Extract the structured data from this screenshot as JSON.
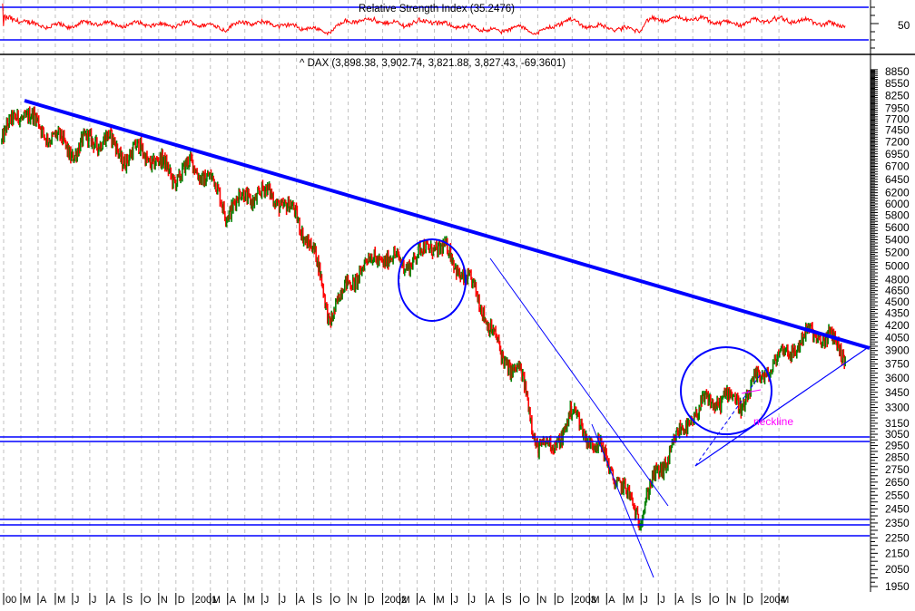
{
  "rsi_panel": {
    "title": "Relative Strength Index (35.2476)",
    "axis_label_50": "50",
    "upper_band": 70,
    "lower_band": 30
  },
  "price_panel": {
    "title": "^ DAX (3,898.38, 3,902.74, 3,821.88, 3,827.43, -69.3601)",
    "neckline_label": "neckline"
  },
  "colors": {
    "up_bar": "#008000",
    "down_bar": "#ff0000",
    "rsi_line": "#ff0000",
    "trendline": "#0000ff",
    "annotation_text": "#ff00ff",
    "grid": "#c0c0c0"
  },
  "chart_data": [
    {
      "type": "line",
      "title": "Relative Strength Index (35.2476)",
      "ylabel": "",
      "yticks": [
        "50"
      ],
      "bands": [
        70,
        30
      ],
      "last_value": 35.2476,
      "grid": true
    },
    {
      "type": "ohlc",
      "title": "^ DAX (3,898.38, 3,902.74, 3,821.88, 3,827.43, -69.3601)",
      "last_bar": {
        "open": 3898.38,
        "high": 3902.74,
        "low": 3821.88,
        "close": 3827.43,
        "change": -69.3601
      },
      "y_axis_position": "right",
      "yticks": [
        8850,
        8550,
        8250,
        7950,
        7700,
        7450,
        7200,
        6950,
        6700,
        6450,
        6200,
        6000,
        5800,
        5600,
        5400,
        5200,
        5000,
        4800,
        4650,
        4500,
        4350,
        4200,
        4050,
        3900,
        3750,
        3600,
        3450,
        3300,
        3150,
        3050,
        2950,
        2850,
        2750,
        2650,
        2550,
        2450,
        2350,
        2250,
        2150,
        2050,
        1950
      ],
      "ylim": [
        1900,
        9100
      ],
      "y_scale": "log",
      "xticks": [
        "00",
        "M",
        "A",
        "M",
        "J",
        "J",
        "A",
        "S",
        "O",
        "N",
        "D",
        "2001",
        "M",
        "A",
        "M",
        "J",
        "J",
        "A",
        "S",
        "O",
        "N",
        "D",
        "2002",
        "M",
        "A",
        "M",
        "J",
        "J",
        "A",
        "S",
        "O",
        "N",
        "D",
        "2003",
        "M",
        "A",
        "M",
        "J",
        "J",
        "A",
        "S",
        "O",
        "N",
        "D",
        "2004",
        "M"
      ],
      "grid": true,
      "series_monthly_approx": {
        "x": [
          "2000-02",
          "2000-03",
          "2000-04",
          "2000-05",
          "2000-06",
          "2000-07",
          "2000-08",
          "2000-09",
          "2000-10",
          "2000-11",
          "2000-12",
          "2001-01",
          "2001-02",
          "2001-03",
          "2001-04",
          "2001-05",
          "2001-06",
          "2001-07",
          "2001-08",
          "2001-09",
          "2001-10",
          "2001-11",
          "2001-12",
          "2002-01",
          "2002-02",
          "2002-03",
          "2002-04",
          "2002-05",
          "2002-06",
          "2002-07",
          "2002-08",
          "2002-09",
          "2002-10",
          "2002-11",
          "2002-12",
          "2003-01",
          "2003-02",
          "2003-03",
          "2003-04",
          "2003-05",
          "2003-06",
          "2003-07",
          "2003-08",
          "2003-09",
          "2003-10",
          "2003-11",
          "2003-12",
          "2004-01",
          "2004-02",
          "2004-03"
        ],
        "close": [
          7200,
          7900,
          7600,
          7300,
          7000,
          7200,
          7300,
          6900,
          7000,
          6800,
          6500,
          6700,
          6500,
          5900,
          6100,
          6200,
          6100,
          5800,
          5300,
          4300,
          4700,
          5000,
          5150,
          5050,
          5100,
          5350,
          5150,
          4800,
          4400,
          3800,
          3700,
          3000,
          2900,
          3250,
          3050,
          2850,
          2600,
          2400,
          2700,
          2950,
          3200,
          3350,
          3400,
          3350,
          3600,
          3800,
          3950,
          4100,
          4050,
          3830
        ]
      },
      "annotations": [
        {
          "type": "trendline",
          "desc": "thick descending resistance from Mar 2000 high ~8100 to Mar 2004 ~3700",
          "width": "thick"
        },
        {
          "type": "trendline",
          "desc": "thin descending channel line from Apr 2002 ~5100 to Mar 2003 low ~2150"
        },
        {
          "type": "trendline",
          "desc": "thin ascending support from Apr 2003 ~2800 to Mar 2004 ~3850"
        },
        {
          "type": "trendline",
          "desc": "dashed ascending line from Apr 2003 low toward Aug 2003"
        },
        {
          "type": "ellipse",
          "desc": "circle around Oct 2001 - Feb 2002 consolidation"
        },
        {
          "type": "ellipse",
          "desc": "circle around Jun - Sep 2003 head-and-shoulders"
        },
        {
          "type": "text",
          "text": "neckline",
          "color": "#ff00ff"
        },
        {
          "type": "hline",
          "value": 3060
        },
        {
          "type": "hline",
          "value": 3020
        },
        {
          "type": "hline",
          "value": 2580
        },
        {
          "type": "hline",
          "value": 2540
        },
        {
          "type": "hline",
          "value": 2460
        }
      ]
    }
  ]
}
